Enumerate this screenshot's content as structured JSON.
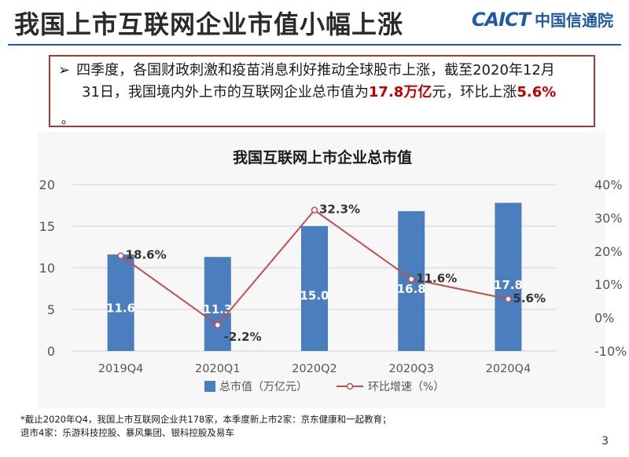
{
  "header": {
    "title": "我国上市互联网企业市值小幅上涨",
    "logo_en": "CAICT",
    "logo_cn": "中国信通院"
  },
  "summary": {
    "arrow": "➢",
    "line1": "四季度，各国财政刺激和疫苗消息利好推动全球股市上涨，截至2020年12月",
    "line2_pre": "31日，我国境内外上市的互联网企业总市值为",
    "line2_hl1": "17.8万亿",
    "line2_mid": "元，环比上涨",
    "line2_hl2": "5.6%",
    "dot": "。"
  },
  "colors": {
    "bar": "#4a7ebf",
    "line": "#c0504d",
    "accent": "#1f5aa6",
    "highlight": "#c00000"
  },
  "chart_data": {
    "type": "bar",
    "title": "我国互联网上市企业总市值",
    "categories": [
      "2019Q4",
      "2020Q1",
      "2020Q2",
      "2020Q3",
      "2020Q4"
    ],
    "series": [
      {
        "name": "总市值（万亿元）",
        "type": "bar",
        "axis": "left",
        "values": [
          11.6,
          11.3,
          15.0,
          16.8,
          17.8
        ],
        "labels": [
          "11.6",
          "11.3",
          "15.0",
          "16.8",
          "17.8"
        ]
      },
      {
        "name": "环比增速（%）",
        "type": "line",
        "axis": "right",
        "values": [
          18.6,
          -2.2,
          32.3,
          11.6,
          5.6
        ],
        "labels": [
          "18.6%",
          "-2.2%",
          "32.3%",
          "11.6%",
          "5.6%"
        ]
      }
    ],
    "y_left": {
      "min": 0,
      "max": 20,
      "ticks": [
        "0",
        "5",
        "10",
        "15",
        "20"
      ]
    },
    "y_right": {
      "min": -10,
      "max": 40,
      "ticks": [
        "-10%",
        "0%",
        "10%",
        "20%",
        "30%",
        "40%"
      ]
    },
    "grid": true,
    "legend_position": "bottom"
  },
  "footnote": {
    "line1": "*截止2020年Q4，我国上市互联网企业共178家，本季度新上市2家：京东健康和一起教育；",
    "line2": "退市4家：乐游科技控股、暴风集团、银科控股及易车"
  },
  "page_number": "3"
}
